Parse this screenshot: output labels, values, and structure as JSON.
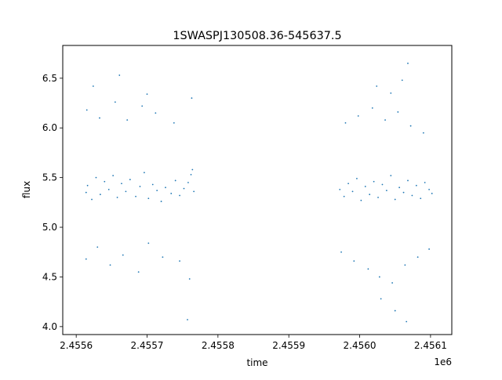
{
  "chart_data": {
    "type": "scatter",
    "title": "1SWASPJ130508.36-545637.5",
    "xlabel": "time",
    "ylabel": "flux",
    "x_offset_label": "1e6",
    "xlim": [
      2.455581,
      2.45613
    ],
    "ylim": [
      3.92,
      6.83
    ],
    "xticks": [
      {
        "value": 2.4556,
        "label": "2.4556"
      },
      {
        "value": 2.4557,
        "label": "2.4557"
      },
      {
        "value": 2.4558,
        "label": "2.4558"
      },
      {
        "value": 2.4559,
        "label": "2.4559"
      },
      {
        "value": 2.456,
        "label": "2.4560"
      },
      {
        "value": 2.4561,
        "label": "2.4561"
      }
    ],
    "yticks": [
      {
        "value": 4.0,
        "label": "4.0"
      },
      {
        "value": 4.5,
        "label": "4.5"
      },
      {
        "value": 5.0,
        "label": "5.0"
      },
      {
        "value": 5.5,
        "label": "5.5"
      },
      {
        "value": 6.0,
        "label": "6.0"
      },
      {
        "value": 6.5,
        "label": "6.5"
      }
    ],
    "grid": false,
    "legend": "none",
    "marker_color": "#1f77b4",
    "series": [
      {
        "x": [
          2.455614,
          2.455616,
          2.455622,
          2.455628,
          2.455634,
          2.45564,
          2.455646,
          2.455652,
          2.455658,
          2.455664,
          2.45567,
          2.455676,
          2.455684,
          2.45569,
          2.455696,
          2.455702,
          2.455708,
          2.455714,
          2.45572,
          2.455726,
          2.455734,
          2.45574,
          2.455746,
          2.455752,
          2.455758,
          2.455762,
          2.455764,
          2.455766,
          2.455614,
          2.45563,
          2.455648,
          2.455666,
          2.455688,
          2.455702,
          2.455722,
          2.455746,
          2.45576,
          2.455615,
          2.455633,
          2.455655,
          2.455672,
          2.455693,
          2.455712,
          2.455738,
          2.455763,
          2.455624,
          2.455661,
          2.4557,
          2.455757
        ],
        "y": [
          5.35,
          5.42,
          5.28,
          5.5,
          5.33,
          5.46,
          5.38,
          5.52,
          5.3,
          5.44,
          5.36,
          5.48,
          5.31,
          5.41,
          5.55,
          5.29,
          5.43,
          5.37,
          5.26,
          5.4,
          5.34,
          5.47,
          5.32,
          5.39,
          5.45,
          5.53,
          5.58,
          5.36,
          4.68,
          4.8,
          4.62,
          4.72,
          4.55,
          4.84,
          4.7,
          4.66,
          4.48,
          6.18,
          6.1,
          6.26,
          6.08,
          6.22,
          6.15,
          6.05,
          6.3,
          6.42,
          6.53,
          6.34,
          4.07
        ]
      },
      {
        "x": [
          2.455972,
          2.455978,
          2.455984,
          2.45599,
          2.455996,
          2.456002,
          2.456008,
          2.456014,
          2.45602,
          2.456026,
          2.456032,
          2.456038,
          2.456044,
          2.45605,
          2.456056,
          2.456062,
          2.456068,
          2.456074,
          2.45608,
          2.456086,
          2.456092,
          2.456098,
          2.456102,
          2.455974,
          2.455992,
          2.456012,
          2.456028,
          2.456046,
          2.456064,
          2.456082,
          2.456098,
          2.45598,
          2.455998,
          2.456018,
          2.456036,
          2.456054,
          2.456072,
          2.45609,
          2.456024,
          2.456044,
          2.45606,
          2.456068,
          2.45603,
          2.45605,
          2.456066
        ],
        "y": [
          5.38,
          5.31,
          5.44,
          5.36,
          5.49,
          5.27,
          5.41,
          5.33,
          5.46,
          5.3,
          5.43,
          5.37,
          5.52,
          5.28,
          5.4,
          5.35,
          5.47,
          5.32,
          5.42,
          5.29,
          5.45,
          5.38,
          5.34,
          4.75,
          4.66,
          4.58,
          4.5,
          4.44,
          4.62,
          4.7,
          4.78,
          6.05,
          6.12,
          6.2,
          6.08,
          6.16,
          6.02,
          5.95,
          6.42,
          6.35,
          6.48,
          6.65,
          4.28,
          4.16,
          4.05
        ]
      }
    ]
  }
}
